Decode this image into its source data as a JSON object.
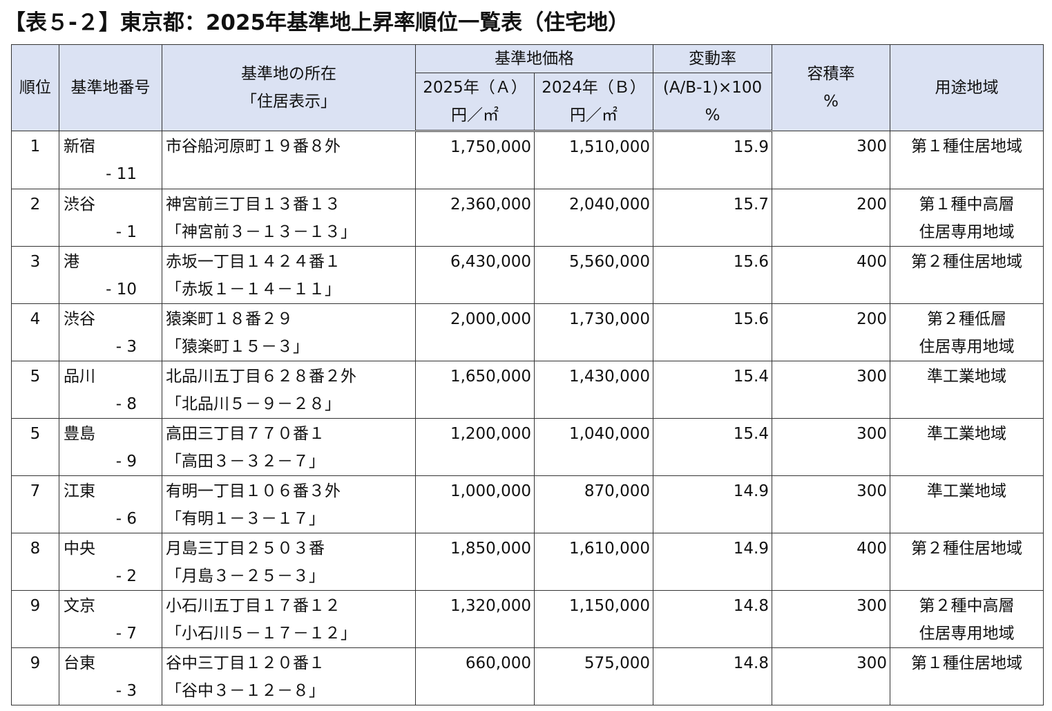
{
  "title": "【表５-２】東京都：2025年基準地上昇率順位一覧表（住宅地）",
  "headers": {
    "rank": "順位",
    "base_no": "基準地番号",
    "location_l1": "基準地の所在",
    "location_l2": "「住居表示」",
    "price": "基準地価格",
    "price_2025_l1": "2025年（Ａ）",
    "price_2025_l2": "円／㎡",
    "price_2024_l1": "2024年（Ｂ）",
    "price_2024_l2": "円／㎡",
    "change_l1": "変動率",
    "change_l2": "(A/B-1)×100",
    "change_l3": "%",
    "far_l1": "容積率",
    "far_l2": "%",
    "zone": "用途地域"
  },
  "rows": [
    {
      "rank": "1",
      "ward": "新宿",
      "num": "- 11",
      "loc1": "市谷船河原町１９番８外",
      "loc2": "",
      "p2025": "1,750,000",
      "p2024": "1,510,000",
      "change": "15.9",
      "far": "300",
      "zone1": "第１種住居地域",
      "zone2": ""
    },
    {
      "rank": "2",
      "ward": "渋谷",
      "num": "- 1",
      "loc1": "神宮前三丁目１３番１３",
      "loc2": "「神宮前３－１３－１３」",
      "p2025": "2,360,000",
      "p2024": "2,040,000",
      "change": "15.7",
      "far": "200",
      "zone1": "第１種中高層",
      "zone2": "住居専用地域"
    },
    {
      "rank": "3",
      "ward": "港",
      "num": "- 10",
      "loc1": "赤坂一丁目１４２４番１",
      "loc2": "「赤坂１－１４－１１」",
      "p2025": "6,430,000",
      "p2024": "5,560,000",
      "change": "15.6",
      "far": "400",
      "zone1": "第２種住居地域",
      "zone2": ""
    },
    {
      "rank": "4",
      "ward": "渋谷",
      "num": "- 3",
      "loc1": "猿楽町１８番２９",
      "loc2": "「猿楽町１５－３」",
      "p2025": "2,000,000",
      "p2024": "1,730,000",
      "change": "15.6",
      "far": "200",
      "zone1": "第２種低層",
      "zone2": "住居専用地域"
    },
    {
      "rank": "5",
      "ward": "品川",
      "num": "- 8",
      "loc1": "北品川五丁目６２８番２外",
      "loc2": "「北品川５－９－２８」",
      "p2025": "1,650,000",
      "p2024": "1,430,000",
      "change": "15.4",
      "far": "300",
      "zone1": "準工業地域",
      "zone2": ""
    },
    {
      "rank": "5",
      "ward": "豊島",
      "num": "- 9",
      "loc1": "高田三丁目７７０番１",
      "loc2": "「高田３－３２－７」",
      "p2025": "1,200,000",
      "p2024": "1,040,000",
      "change": "15.4",
      "far": "300",
      "zone1": "準工業地域",
      "zone2": ""
    },
    {
      "rank": "7",
      "ward": "江東",
      "num": "- 6",
      "loc1": "有明一丁目１０６番３外",
      "loc2": "「有明１－３－１７」",
      "p2025": "1,000,000",
      "p2024": "870,000",
      "change": "14.9",
      "far": "300",
      "zone1": "準工業地域",
      "zone2": ""
    },
    {
      "rank": "8",
      "ward": "中央",
      "num": "- 2",
      "loc1": "月島三丁目２５０３番",
      "loc2": "「月島３－２５－３」",
      "p2025": "1,850,000",
      "p2024": "1,610,000",
      "change": "14.9",
      "far": "400",
      "zone1": "第２種住居地域",
      "zone2": ""
    },
    {
      "rank": "9",
      "ward": "文京",
      "num": "- 7",
      "loc1": "小石川五丁目１７番１２",
      "loc2": "「小石川５－１７－１２」",
      "p2025": "1,320,000",
      "p2024": "1,150,000",
      "change": "14.8",
      "far": "300",
      "zone1": "第２種中高層",
      "zone2": "住居専用地域"
    },
    {
      "rank": "9",
      "ward": "台東",
      "num": "- 3",
      "loc1": "谷中三丁目１２０番１",
      "loc2": "「谷中３－１２－８」",
      "p2025": "660,000",
      "p2024": "575,000",
      "change": "14.8",
      "far": "300",
      "zone1": "第１種住居地域",
      "zone2": ""
    }
  ]
}
